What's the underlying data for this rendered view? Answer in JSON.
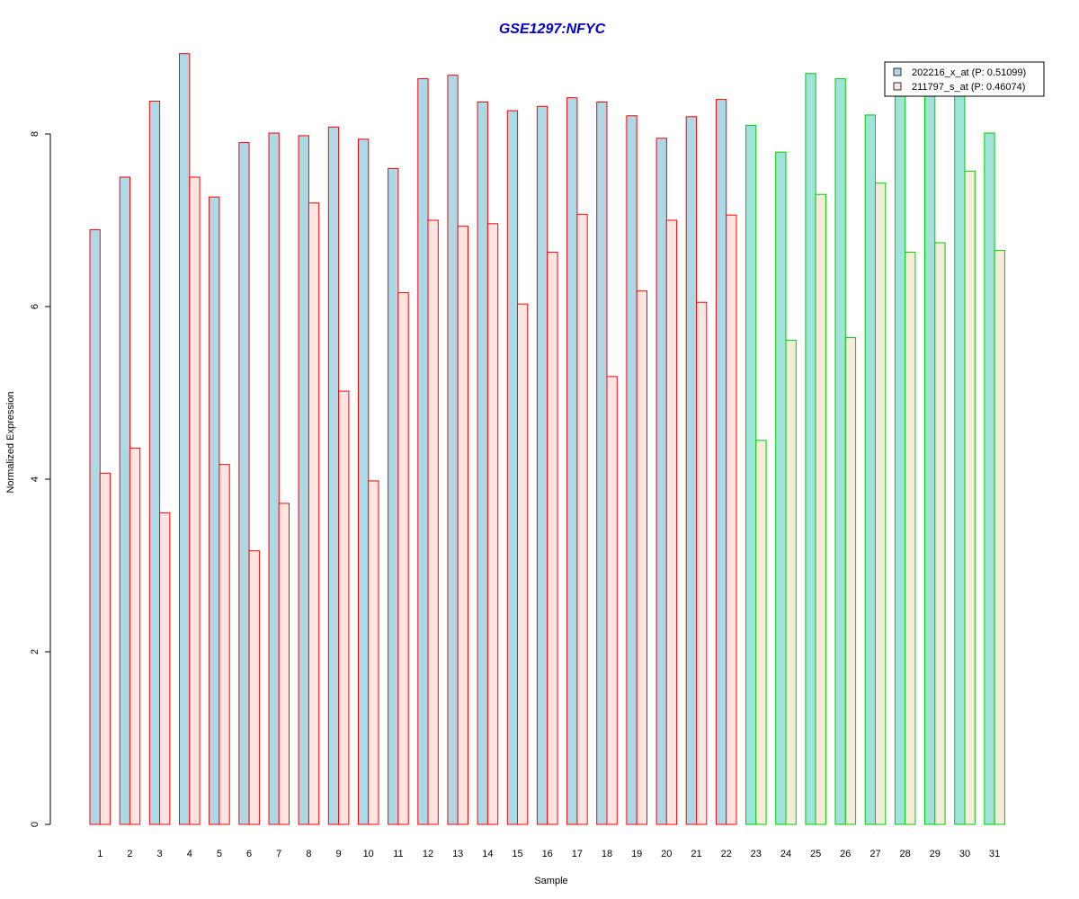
{
  "chart_data": {
    "type": "bar",
    "title": "GSE1297:NFYC",
    "xlabel": "Sample",
    "ylabel": "Normalized Expression",
    "ylim": [
      0,
      9
    ],
    "yticks": [
      0,
      2,
      4,
      6,
      8
    ],
    "categories": [
      "1",
      "2",
      "3",
      "4",
      "5",
      "6",
      "7",
      "8",
      "9",
      "10",
      "11",
      "12",
      "13",
      "14",
      "15",
      "16",
      "17",
      "18",
      "19",
      "20",
      "21",
      "22",
      "23",
      "24",
      "25",
      "26",
      "27",
      "28",
      "29",
      "30",
      "31"
    ],
    "series": [
      {
        "name": "202216_x_at (P: 0.51099)",
        "values": [
          6.89,
          7.5,
          8.38,
          8.93,
          7.27,
          7.9,
          8.01,
          7.98,
          8.08,
          7.94,
          7.6,
          8.64,
          8.68,
          8.37,
          8.27,
          8.32,
          8.42,
          8.37,
          8.21,
          7.95,
          8.2,
          8.4,
          8.1,
          7.79,
          8.7,
          8.64,
          8.22,
          8.45,
          8.45,
          8.45,
          8.01
        ],
        "fill": "#add8e6"
      },
      {
        "name": "211797_s_at (P: 0.46074)",
        "values": [
          4.07,
          4.36,
          3.61,
          7.5,
          4.17,
          3.17,
          3.72,
          7.2,
          5.02,
          3.98,
          6.16,
          7.0,
          6.93,
          6.96,
          6.03,
          6.63,
          7.07,
          5.19,
          6.18,
          7.0,
          6.05,
          7.06,
          4.45,
          5.61,
          7.3,
          5.64,
          7.43,
          6.63,
          6.74,
          7.57,
          6.65
        ],
        "fill": "#ffe4e1"
      }
    ],
    "groups": [
      {
        "start": 1,
        "end": 22,
        "border": "#ff0000"
      },
      {
        "start": 23,
        "end": 31,
        "border": "#00cc00"
      }
    ],
    "group_fills": [
      {
        "start": 23,
        "end": 31,
        "series0_fill": "#a0e4d9",
        "series1_fill": "#f3edd9"
      }
    ],
    "title_color": "#0000cc",
    "legend_position": "top-right"
  }
}
